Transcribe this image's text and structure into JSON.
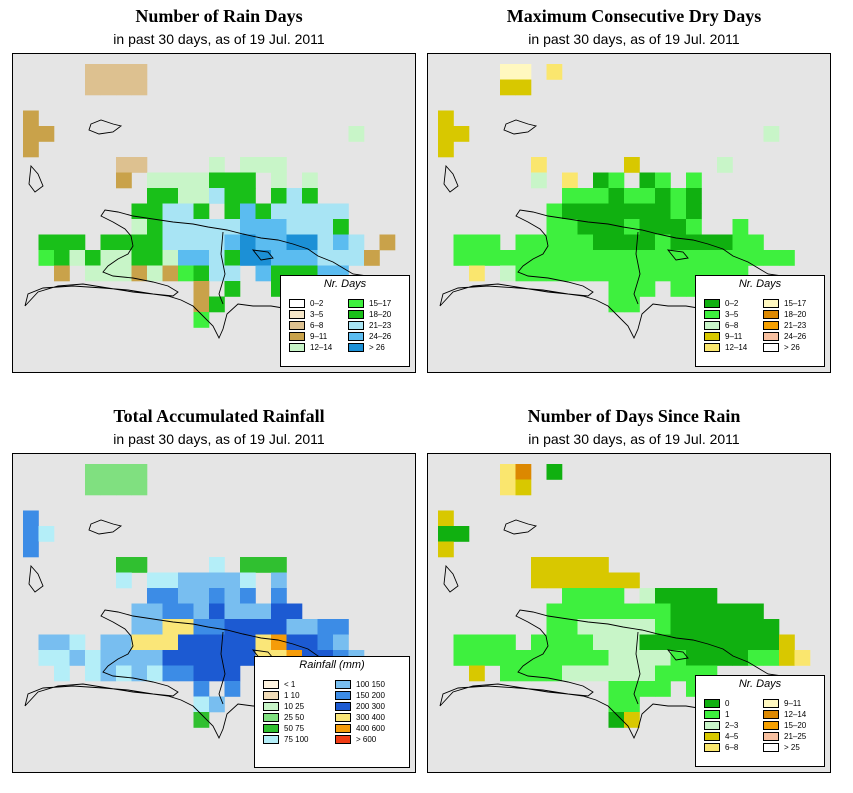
{
  "panels": [
    {
      "id": "rain-days",
      "title": "Number of Rain Days",
      "subtitle": "in past 30 days, as of  19 Jul. 2011",
      "legend": {
        "title": "Nr. Days",
        "items": [
          {
            "label": "0–2",
            "color": "#ffffff"
          },
          {
            "label": "3–5",
            "color": "#f5e6c8"
          },
          {
            "label": "6–8",
            "color": "#ddc190"
          },
          {
            "label": "9–11",
            "color": "#c9a24a"
          },
          {
            "label": "12–14",
            "color": "#c8f5c8"
          },
          {
            "label": "15–17",
            "color": "#3ef03e"
          },
          {
            "label": "18–20",
            "color": "#19c019"
          },
          {
            "label": "21–23",
            "color": "#a8e4f4"
          },
          {
            "label": "24–26",
            "color": "#5bbcf0"
          },
          {
            "label": "> 26",
            "color": "#1c90d6"
          }
        ]
      }
    },
    {
      "id": "max-dry-days",
      "title": "Maximum Consecutive Dry Days",
      "subtitle": "in past 30 days, as of  19 Jul. 2011",
      "legend": {
        "title": "Nr. Days",
        "items": [
          {
            "label": "0–2",
            "color": "#10b010"
          },
          {
            "label": "3–5",
            "color": "#3ef03e"
          },
          {
            "label": "6–8",
            "color": "#c8f5c8"
          },
          {
            "label": "9–11",
            "color": "#d8c800"
          },
          {
            "label": "12–14",
            "color": "#fae66e"
          },
          {
            "label": "15–17",
            "color": "#fff8c0"
          },
          {
            "label": "18–20",
            "color": "#dc8800"
          },
          {
            "label": "21–23",
            "color": "#f5a000"
          },
          {
            "label": "24–26",
            "color": "#f8c0a0"
          },
          {
            "label": "> 26",
            "color": "#ffffff"
          }
        ]
      }
    },
    {
      "id": "total-rainfall",
      "title": "Total Accumulated Rainfall",
      "subtitle": "in past 30 days, as of  19 Jul. 2011",
      "legend": {
        "title": "Rainfall (mm)",
        "items": [
          {
            "label": "< 1",
            "color": "#fff4e0"
          },
          {
            "label": "1     10",
            "color": "#f0dcb8"
          },
          {
            "label": "10     25",
            "color": "#c8f5c8"
          },
          {
            "label": "25     50",
            "color": "#80e080"
          },
          {
            "label": "50     75",
            "color": "#30c030"
          },
          {
            "label": "75   100",
            "color": "#b4eef8"
          },
          {
            "label": "100   150",
            "color": "#78bef0"
          },
          {
            "label": "150   200",
            "color": "#3c8ce6"
          },
          {
            "label": "200   300",
            "color": "#1c5ad2"
          },
          {
            "label": "300   400",
            "color": "#fae678"
          },
          {
            "label": "400   600",
            "color": "#f59c0a"
          },
          {
            "label": "> 600",
            "color": "#f03c14"
          }
        ]
      }
    },
    {
      "id": "days-since-rain",
      "title": "Number of Days Since Rain",
      "subtitle": "in past 30 days, as of  19 Jul. 2011",
      "legend": {
        "title": "Nr. Days",
        "items": [
          {
            "label": "0",
            "color": "#10b010"
          },
          {
            "label": "1",
            "color": "#3ef03e"
          },
          {
            "label": "2–3",
            "color": "#c8f5c8"
          },
          {
            "label": "4–5",
            "color": "#d8c800"
          },
          {
            "label": "6–8",
            "color": "#fae66e"
          },
          {
            "label": "9–11",
            "color": "#fff8c0"
          },
          {
            "label": "12–14",
            "color": "#dc8800"
          },
          {
            "label": "15–20",
            "color": "#f5a000"
          },
          {
            "label": "21–25",
            "color": "#f8c0a0"
          },
          {
            "label": "> 25",
            "color": "#ffffff"
          }
        ]
      }
    }
  ]
}
